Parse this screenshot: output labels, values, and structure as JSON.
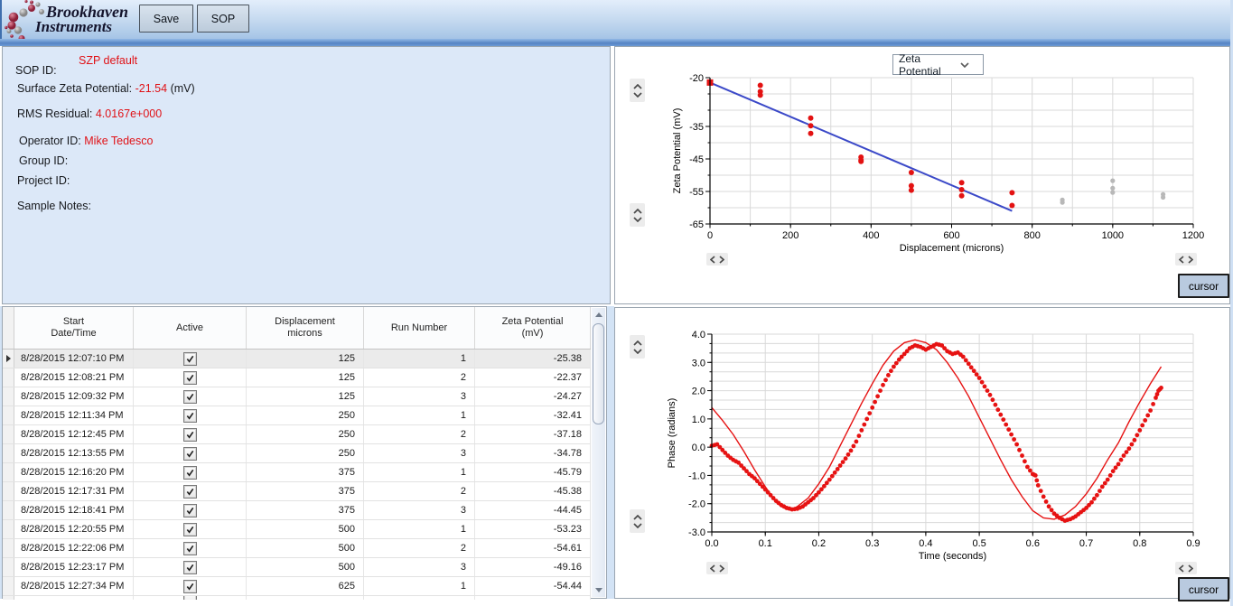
{
  "toolbar": {
    "brand_line1": "Brookhaven",
    "brand_line2": "Instruments",
    "save_label": "Save",
    "sop_label": "SOP"
  },
  "info": {
    "sop_value": "SZP default",
    "sop_label": "SOP ID:",
    "szp_label": "Surface Zeta Potential:",
    "szp_value": "-21.54",
    "szp_unit": "(mV)",
    "rms_label": "RMS Residual:",
    "rms_value": "4.0167e+000",
    "operator_label": "Operator ID:",
    "operator_value": "Mike Tedesco",
    "group_label": "Group ID:",
    "project_label": "Project ID:",
    "sample_notes_label": "Sample Notes:"
  },
  "table": {
    "headers": [
      [
        "Start",
        "Date/Time"
      ],
      [
        "Active"
      ],
      [
        "Displacement",
        "microns"
      ],
      [
        "Run Number"
      ],
      [
        "Zeta Potential",
        "(mV)"
      ]
    ],
    "rows": [
      {
        "start": "8/28/2015 12:07:10 PM",
        "active": true,
        "displacement": "125",
        "run": "1",
        "zeta": "-25.38"
      },
      {
        "start": "8/28/2015 12:08:21 PM",
        "active": true,
        "displacement": "125",
        "run": "2",
        "zeta": "-22.37"
      },
      {
        "start": "8/28/2015 12:09:32 PM",
        "active": true,
        "displacement": "125",
        "run": "3",
        "zeta": "-24.27"
      },
      {
        "start": "8/28/2015 12:11:34 PM",
        "active": true,
        "displacement": "250",
        "run": "1",
        "zeta": "-32.41"
      },
      {
        "start": "8/28/2015 12:12:45 PM",
        "active": true,
        "displacement": "250",
        "run": "2",
        "zeta": "-37.18"
      },
      {
        "start": "8/28/2015 12:13:55 PM",
        "active": true,
        "displacement": "250",
        "run": "3",
        "zeta": "-34.78"
      },
      {
        "start": "8/28/2015 12:16:20 PM",
        "active": true,
        "displacement": "375",
        "run": "1",
        "zeta": "-45.79"
      },
      {
        "start": "8/28/2015 12:17:31 PM",
        "active": true,
        "displacement": "375",
        "run": "2",
        "zeta": "-45.38"
      },
      {
        "start": "8/28/2015 12:18:41 PM",
        "active": true,
        "displacement": "375",
        "run": "3",
        "zeta": "-44.45"
      },
      {
        "start": "8/28/2015 12:20:55 PM",
        "active": true,
        "displacement": "500",
        "run": "1",
        "zeta": "-53.23"
      },
      {
        "start": "8/28/2015 12:22:06 PM",
        "active": true,
        "displacement": "500",
        "run": "2",
        "zeta": "-54.61"
      },
      {
        "start": "8/28/2015 12:23:17 PM",
        "active": true,
        "displacement": "500",
        "run": "3",
        "zeta": "-49.16"
      },
      {
        "start": "8/28/2015 12:27:34 PM",
        "active": true,
        "displacement": "625",
        "run": "1",
        "zeta": "-54.44"
      }
    ],
    "partial_row_visible": true
  },
  "chart_data": [
    {
      "name": "zeta-vs-displacement",
      "type": "scatter",
      "selector_value": "Zeta Potential",
      "cursor_label": "cursor",
      "xlabel": "Displacement (microns)",
      "ylabel": "Zeta Potential (mV)",
      "xlim": [
        0,
        1200
      ],
      "ylim": [
        -65,
        -20
      ],
      "x_grid_step": 100,
      "y_grid_step": 5,
      "x_ticks": [
        {
          "v": 0,
          "label": "0"
        },
        {
          "v": 200,
          "label": "200"
        },
        {
          "v": 400,
          "label": "400"
        },
        {
          "v": 600,
          "label": "600"
        },
        {
          "v": 800,
          "label": "800"
        },
        {
          "v": 1000,
          "label": "1000"
        },
        {
          "v": 1200,
          "label": "1200"
        }
      ],
      "y_ticks": [
        {
          "v": -20,
          "label": "-20"
        },
        {
          "v": -35,
          "label": "-35"
        },
        {
          "v": -45,
          "label": "-45"
        },
        {
          "v": -55,
          "label": "-55"
        },
        {
          "v": -65,
          "label": "-65"
        }
      ],
      "series": [
        {
          "name": "active-runs",
          "marker": "circle",
          "color": "#e31212",
          "radius": 3,
          "points": [
            [
              125,
              -22.37
            ],
            [
              125,
              -24.27
            ],
            [
              125,
              -25.38
            ],
            [
              250,
              -32.41
            ],
            [
              250,
              -34.78
            ],
            [
              250,
              -37.18
            ],
            [
              375,
              -44.45
            ],
            [
              375,
              -45.38
            ],
            [
              375,
              -45.79
            ],
            [
              500,
              -49.16
            ],
            [
              500,
              -53.23
            ],
            [
              500,
              -54.61
            ],
            [
              625,
              -52.3
            ],
            [
              625,
              -54.44
            ],
            [
              625,
              -56.3
            ],
            [
              750,
              -55.4
            ],
            [
              750,
              -59.3
            ]
          ]
        },
        {
          "name": "inactive-runs",
          "marker": "circle",
          "color": "#b8b8b8",
          "radius": 2.6,
          "points": [
            [
              875,
              -57.6
            ],
            [
              875,
              -58.4
            ],
            [
              1000,
              -51.7
            ],
            [
              1000,
              -54.0
            ],
            [
              1000,
              -55.3
            ],
            [
              1125,
              -55.9
            ],
            [
              1125,
              -56.8
            ]
          ]
        },
        {
          "name": "zero-displacement-marker",
          "marker": "square",
          "color": "#e31212",
          "size": 7,
          "points": [
            [
              0,
              -21.5
            ]
          ]
        }
      ],
      "lines": [
        {
          "name": "linear-fit",
          "color": "#3b49c8",
          "width": 2,
          "points": [
            [
              0,
              -21.5
            ],
            [
              750,
              -61.0
            ]
          ]
        }
      ]
    },
    {
      "name": "phase-vs-time",
      "type": "scatter",
      "cursor_label": "cursor",
      "xlabel": "Time (seconds)",
      "ylabel": "Phase (radians)",
      "xlim": [
        0,
        0.9
      ],
      "ylim": [
        -3,
        4
      ],
      "x_grid_step": 0.1,
      "y_grid_step": 0.33333,
      "x_ticks": [
        {
          "v": 0,
          "label": "0.0"
        },
        {
          "v": 0.1,
          "label": "0.1"
        },
        {
          "v": 0.2,
          "label": "0.2"
        },
        {
          "v": 0.3,
          "label": "0.3"
        },
        {
          "v": 0.4,
          "label": "0.4"
        },
        {
          "v": 0.5,
          "label": "0.5"
        },
        {
          "v": 0.6,
          "label": "0.6"
        },
        {
          "v": 0.7,
          "label": "0.7"
        },
        {
          "v": 0.8,
          "label": "0.8"
        },
        {
          "v": 0.9,
          "label": "0.9"
        }
      ],
      "y_ticks": [
        {
          "v": 4,
          "label": "4.0"
        },
        {
          "v": 3,
          "label": "3.0"
        },
        {
          "v": 2,
          "label": "2.0"
        },
        {
          "v": 1,
          "label": "1.0"
        },
        {
          "v": 0,
          "label": "0.0"
        },
        {
          "v": -1,
          "label": "-1.0"
        },
        {
          "v": -2,
          "label": "-2.0"
        },
        {
          "v": -3,
          "label": "-3.0"
        }
      ],
      "series": [
        {
          "name": "measured-phase",
          "marker": "circle",
          "color": "#e61212",
          "radius": 2.4,
          "subdivide": 2,
          "points": [
            [
              0,
              0.05
            ],
            [
              0.01,
              0.1
            ],
            [
              0.02,
              -0.1
            ],
            [
              0.03,
              -0.3
            ],
            [
              0.04,
              -0.45
            ],
            [
              0.05,
              -0.55
            ],
            [
              0.06,
              -0.75
            ],
            [
              0.07,
              -0.95
            ],
            [
              0.08,
              -1.1
            ],
            [
              0.09,
              -1.3
            ],
            [
              0.1,
              -1.5
            ],
            [
              0.11,
              -1.7
            ],
            [
              0.12,
              -1.9
            ],
            [
              0.13,
              -2.05
            ],
            [
              0.14,
              -2.15
            ],
            [
              0.15,
              -2.2
            ],
            [
              0.16,
              -2.18
            ],
            [
              0.17,
              -2.1
            ],
            [
              0.18,
              -1.95
            ],
            [
              0.19,
              -1.8
            ],
            [
              0.2,
              -1.6
            ],
            [
              0.21,
              -1.38
            ],
            [
              0.22,
              -1.15
            ],
            [
              0.23,
              -0.9
            ],
            [
              0.24,
              -0.65
            ],
            [
              0.25,
              -0.4
            ],
            [
              0.26,
              -0.12
            ],
            [
              0.27,
              0.2
            ],
            [
              0.28,
              0.6
            ],
            [
              0.29,
              1.0
            ],
            [
              0.3,
              1.4
            ],
            [
              0.31,
              1.8
            ],
            [
              0.32,
              2.2
            ],
            [
              0.33,
              2.55
            ],
            [
              0.34,
              2.85
            ],
            [
              0.35,
              3.1
            ],
            [
              0.36,
              3.3
            ],
            [
              0.37,
              3.5
            ],
            [
              0.38,
              3.6
            ],
            [
              0.39,
              3.55
            ],
            [
              0.4,
              3.45
            ],
            [
              0.41,
              3.55
            ],
            [
              0.42,
              3.65
            ],
            [
              0.43,
              3.6
            ],
            [
              0.44,
              3.4
            ],
            [
              0.45,
              3.3
            ],
            [
              0.46,
              3.35
            ],
            [
              0.47,
              3.2
            ],
            [
              0.48,
              2.95
            ],
            [
              0.49,
              2.7
            ],
            [
              0.5,
              2.45
            ],
            [
              0.51,
              2.15
            ],
            [
              0.52,
              1.85
            ],
            [
              0.53,
              1.5
            ],
            [
              0.54,
              1.15
            ],
            [
              0.55,
              0.8
            ],
            [
              0.56,
              0.45
            ],
            [
              0.57,
              0.1
            ],
            [
              0.58,
              -0.3
            ],
            [
              0.59,
              -0.7
            ],
            [
              0.6,
              -0.95
            ],
            [
              0.605,
              -1.0
            ],
            [
              0.61,
              -1.35
            ],
            [
              0.62,
              -1.75
            ],
            [
              0.63,
              -2.1
            ],
            [
              0.64,
              -2.35
            ],
            [
              0.65,
              -2.5
            ],
            [
              0.66,
              -2.6
            ],
            [
              0.67,
              -2.55
            ],
            [
              0.68,
              -2.45
            ],
            [
              0.69,
              -2.3
            ],
            [
              0.7,
              -2.15
            ],
            [
              0.71,
              -1.95
            ],
            [
              0.72,
              -1.7
            ],
            [
              0.73,
              -1.4
            ],
            [
              0.74,
              -1.15
            ],
            [
              0.75,
              -0.85
            ],
            [
              0.76,
              -0.6
            ],
            [
              0.77,
              -0.3
            ],
            [
              0.78,
              -0.05
            ],
            [
              0.79,
              0.25
            ],
            [
              0.8,
              0.6
            ],
            [
              0.81,
              0.95
            ],
            [
              0.82,
              1.3
            ],
            [
              0.83,
              1.75
            ],
            [
              0.835,
              2.0
            ],
            [
              0.84,
              2.1
            ]
          ]
        }
      ],
      "lines": [
        {
          "name": "fit-sine",
          "color": "#e61212",
          "width": 1.4,
          "points": [
            [
              0,
              1.4
            ],
            [
              0.02,
              0.95
            ],
            [
              0.04,
              0.45
            ],
            [
              0.06,
              -0.15
            ],
            [
              0.08,
              -0.8
            ],
            [
              0.1,
              -1.4
            ],
            [
              0.12,
              -1.95
            ],
            [
              0.13,
              -2.1
            ],
            [
              0.14,
              -2.2
            ],
            [
              0.15,
              -2.2
            ],
            [
              0.16,
              -2.1
            ],
            [
              0.18,
              -1.8
            ],
            [
              0.2,
              -1.3
            ],
            [
              0.22,
              -0.7
            ],
            [
              0.24,
              0.05
            ],
            [
              0.26,
              0.8
            ],
            [
              0.28,
              1.55
            ],
            [
              0.3,
              2.25
            ],
            [
              0.32,
              2.9
            ],
            [
              0.34,
              3.4
            ],
            [
              0.36,
              3.7
            ],
            [
              0.38,
              3.8
            ],
            [
              0.4,
              3.7
            ],
            [
              0.42,
              3.45
            ],
            [
              0.44,
              3.0
            ],
            [
              0.46,
              2.45
            ],
            [
              0.48,
              1.8
            ],
            [
              0.5,
              1.05
            ],
            [
              0.52,
              0.3
            ],
            [
              0.54,
              -0.45
            ],
            [
              0.56,
              -1.15
            ],
            [
              0.58,
              -1.75
            ],
            [
              0.6,
              -2.25
            ],
            [
              0.62,
              -2.5
            ],
            [
              0.64,
              -2.55
            ],
            [
              0.66,
              -2.4
            ],
            [
              0.68,
              -2.1
            ],
            [
              0.7,
              -1.65
            ],
            [
              0.72,
              -1.1
            ],
            [
              0.74,
              -0.45
            ],
            [
              0.76,
              0.15
            ],
            [
              0.78,
              0.9
            ],
            [
              0.8,
              1.6
            ],
            [
              0.82,
              2.25
            ],
            [
              0.84,
              2.85
            ]
          ]
        }
      ]
    }
  ]
}
